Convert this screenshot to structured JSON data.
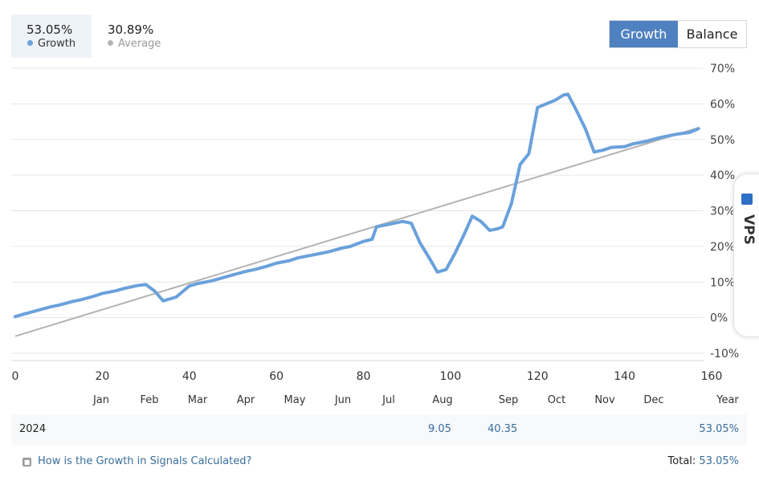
{
  "legend": {
    "growth": {
      "value": "53.05%",
      "label": "Growth"
    },
    "average": {
      "value": "30.89%",
      "label": "Average"
    }
  },
  "toggle": {
    "growth_label": "Growth",
    "balance_label": "Balance"
  },
  "colors": {
    "growth_line": "#6aa1db",
    "average_line": "#b3b3b3",
    "accent": "#4f81c0",
    "link": "#3a6d9c"
  },
  "chart_data": {
    "type": "line",
    "xlim": [
      0,
      160
    ],
    "ylim": [
      -10,
      70
    ],
    "x_ticks": [
      "0",
      "20",
      "40",
      "60",
      "80",
      "100",
      "120",
      "140",
      "160"
    ],
    "y_ticks": [
      "70%",
      "60%",
      "50%",
      "40%",
      "30%",
      "20%",
      "10%",
      "0%",
      "-10%"
    ],
    "month_labels": [
      "Jan",
      "Feb",
      "Mar",
      "Apr",
      "May",
      "Jun",
      "Jul",
      "Aug",
      "Sep",
      "Oct",
      "Nov",
      "Dec",
      "Year"
    ],
    "series": [
      {
        "name": "Growth",
        "x": [
          0,
          2,
          5,
          8,
          10,
          13,
          15,
          18,
          20,
          23,
          25,
          28,
          30,
          32,
          34,
          37,
          40,
          42,
          45,
          48,
          50,
          53,
          55,
          58,
          60,
          63,
          65,
          68,
          70,
          72,
          75,
          77,
          80,
          82,
          83,
          85,
          87,
          89,
          91,
          93,
          95,
          97,
          99,
          101,
          103,
          105,
          107,
          109,
          111,
          112,
          114,
          116,
          118,
          120,
          122,
          124,
          126,
          127,
          129,
          131,
          133,
          135,
          137,
          140,
          142,
          145,
          148,
          150,
          152,
          155,
          157
        ],
        "y": [
          0.3,
          1.0,
          2.0,
          3.0,
          3.5,
          4.5,
          5.0,
          6.0,
          6.8,
          7.5,
          8.2,
          9.0,
          9.3,
          7.5,
          4.7,
          5.8,
          8.9,
          9.6,
          10.3,
          11.3,
          12.0,
          13.0,
          13.5,
          14.5,
          15.3,
          16.0,
          16.8,
          17.5,
          18.0,
          18.5,
          19.5,
          20.0,
          21.4,
          22.0,
          25.5,
          26.0,
          26.5,
          27.0,
          26.5,
          21.0,
          17.0,
          12.8,
          13.5,
          18.0,
          23.0,
          28.5,
          27.0,
          24.5,
          25.0,
          25.5,
          32.0,
          43.0,
          46.0,
          59.0,
          60.0,
          61.0,
          62.5,
          62.7,
          58.0,
          53.0,
          46.5,
          47.0,
          47.8,
          48.0,
          48.8,
          49.5,
          50.5,
          51.0,
          51.5,
          52.0,
          53.05
        ]
      },
      {
        "name": "Average",
        "x": [
          0,
          157
        ],
        "y": [
          -5.2,
          53.3
        ]
      }
    ]
  },
  "table": {
    "year": "2024",
    "aug_value": "9.05",
    "sep_value": "40.35",
    "year_total": "53.05%"
  },
  "footer": {
    "help_link": "How is the Growth in Signals Calculated?",
    "total_label": "Total:",
    "total_value": "53.05%"
  },
  "vps_badge": {
    "text": "MetaTrader VPS"
  }
}
